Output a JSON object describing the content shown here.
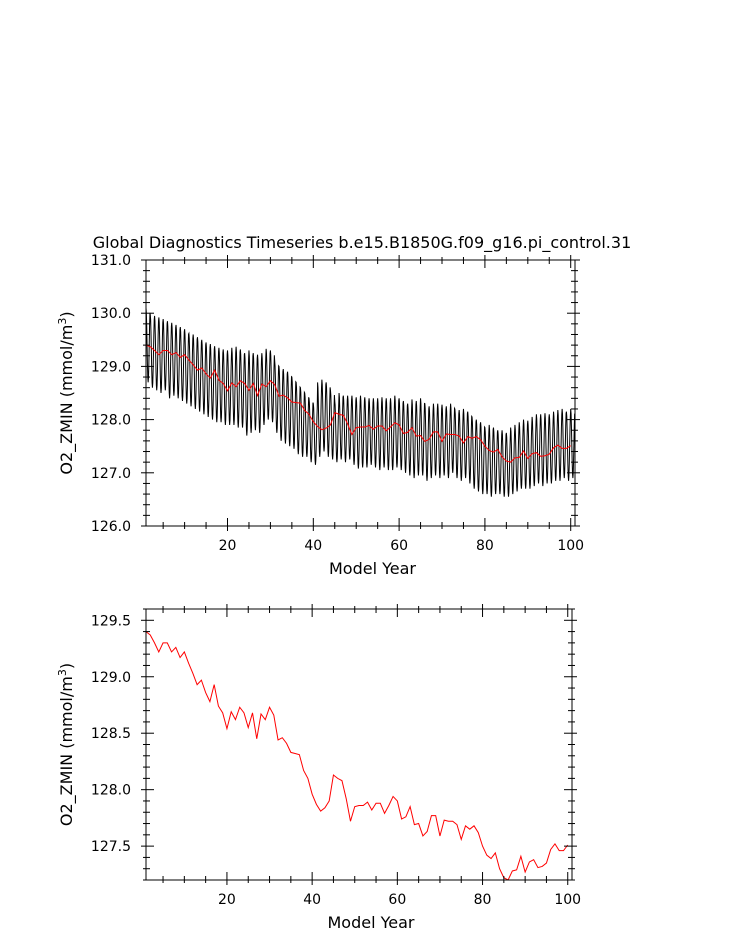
{
  "title": "Global Diagnostics Timeseries b.e15.B1850G.f09_g16.pi_control.31",
  "colors": {
    "monthly": "#000000",
    "annual": "#ff0000",
    "axis": "#000000"
  },
  "chart_data": [
    {
      "type": "line",
      "xlabel": "Model Year",
      "ylabel_main": "O2_ZMIN (mmol/m",
      "ylabel_sup": "3",
      "ylabel_close": ")",
      "xlim": [
        1,
        101
      ],
      "ylim": [
        126.0,
        131.0
      ],
      "xticks": [
        20,
        40,
        60,
        80,
        100
      ],
      "xtick_labels": [
        "20",
        "40",
        "60",
        "80",
        "100"
      ],
      "yticks": [
        126.0,
        127.0,
        128.0,
        129.0,
        130.0,
        131.0
      ],
      "ytick_labels": [
        "126.0",
        "127.0",
        "128.0",
        "129.0",
        "130.0",
        "131.0"
      ],
      "series": [
        {
          "kind": "seasonal-envelope",
          "color": "#000000",
          "x_start": 1,
          "upper": [
            130.1,
            129.97,
            129.95,
            129.92,
            129.89,
            129.85,
            129.82,
            129.78,
            129.74,
            129.7,
            129.62,
            129.6,
            129.55,
            129.5,
            129.45,
            129.42,
            129.38,
            129.35,
            129.32,
            129.3,
            129.35,
            129.37,
            129.32,
            129.25,
            129.3,
            129.25,
            129.22,
            129.25,
            129.33,
            129.3,
            129.1,
            129.0,
            128.95,
            128.9,
            128.8,
            128.7,
            128.6,
            128.5,
            128.4,
            128.3,
            128.7,
            128.75,
            128.7,
            128.55,
            128.35,
            128.5,
            128.45,
            128.45,
            128.45,
            128.42,
            128.45,
            128.42,
            128.4,
            128.4,
            128.4,
            128.42,
            128.4,
            128.4,
            128.45,
            128.4,
            128.35,
            128.3,
            128.38,
            128.35,
            128.4,
            128.3,
            128.25,
            128.3,
            128.3,
            128.28,
            128.25,
            128.3,
            128.2,
            128.18,
            128.2,
            128.15,
            128.05,
            128.0,
            127.95,
            127.85,
            127.9,
            127.85,
            127.8,
            127.8,
            127.75,
            127.85,
            127.9,
            127.95,
            128.0,
            127.98,
            128.05,
            128.1,
            128.1,
            128.12,
            128.1,
            128.15,
            128.18,
            128.2,
            128.15,
            128.2
          ],
          "lower": [
            128.7,
            128.6,
            128.55,
            128.5,
            128.55,
            128.4,
            128.45,
            128.4,
            128.35,
            128.3,
            128.25,
            128.2,
            128.15,
            128.1,
            128.05,
            128.0,
            127.95,
            127.95,
            127.9,
            127.9,
            127.9,
            127.85,
            127.85,
            127.7,
            127.75,
            127.8,
            127.75,
            127.9,
            128.0,
            127.95,
            127.75,
            127.6,
            127.55,
            127.5,
            127.45,
            127.35,
            127.3,
            127.3,
            127.2,
            127.15,
            127.3,
            127.4,
            127.3,
            127.25,
            127.2,
            127.25,
            127.2,
            127.25,
            127.15,
            127.08,
            127.1,
            127.1,
            127.15,
            127.1,
            127.05,
            127.1,
            127.05,
            127.05,
            127.1,
            127.05,
            127.0,
            126.95,
            126.9,
            126.95,
            126.95,
            126.85,
            126.9,
            126.95,
            126.9,
            126.95,
            126.9,
            127.0,
            126.9,
            126.85,
            126.9,
            126.8,
            126.7,
            126.65,
            126.6,
            126.6,
            126.55,
            126.6,
            126.6,
            126.55,
            126.55,
            126.6,
            126.65,
            126.7,
            126.7,
            126.7,
            126.75,
            126.8,
            126.75,
            126.8,
            126.8,
            126.85,
            126.85,
            126.9,
            126.85,
            126.9
          ]
        },
        {
          "kind": "annual-mean",
          "color": "#ff0000",
          "x_start": 1,
          "values": [
            129.4,
            129.37,
            129.3,
            129.22,
            129.3,
            129.3,
            129.22,
            129.26,
            129.17,
            129.22,
            129.12,
            129.03,
            128.93,
            128.97,
            128.86,
            128.78,
            128.93,
            128.74,
            128.68,
            128.54,
            128.69,
            128.62,
            128.73,
            128.68,
            128.55,
            128.68,
            128.45,
            128.67,
            128.62,
            128.73,
            128.66,
            128.44,
            128.46,
            128.41,
            128.33,
            128.32,
            128.31,
            128.17,
            128.1,
            127.96,
            127.87,
            127.81,
            127.84,
            127.9,
            128.13,
            128.1,
            128.08,
            127.92,
            127.72,
            127.85,
            127.86,
            127.86,
            127.89,
            127.82,
            127.88,
            127.88,
            127.79,
            127.86,
            127.94,
            127.9,
            127.74,
            127.76,
            127.85,
            127.69,
            127.7,
            127.59,
            127.63,
            127.77,
            127.77,
            127.59,
            127.73,
            127.72,
            127.72,
            127.69,
            127.56,
            127.68,
            127.65,
            127.68,
            127.62,
            127.5,
            127.42,
            127.39,
            127.44,
            127.3,
            127.22,
            127.2,
            127.28,
            127.29,
            127.41,
            127.27,
            127.36,
            127.38,
            127.31,
            127.32,
            127.35,
            127.47,
            127.52,
            127.46,
            127.46,
            127.51
          ]
        }
      ]
    },
    {
      "type": "line",
      "xlabel": "Model Year",
      "ylabel_main": "O2_ZMIN (mmol/m",
      "ylabel_sup": "3",
      "ylabel_close": ")",
      "xlim": [
        1,
        101
      ],
      "ylim": [
        127.2,
        129.6
      ],
      "xticks": [
        20,
        40,
        60,
        80,
        100
      ],
      "xtick_labels": [
        "20",
        "40",
        "60",
        "80",
        "100"
      ],
      "yticks": [
        127.5,
        128.0,
        128.5,
        129.0,
        129.5
      ],
      "ytick_labels": [
        "127.5",
        "128.0",
        "128.5",
        "129.0",
        "129.5"
      ],
      "series": [
        {
          "kind": "annual-mean",
          "color": "#ff0000",
          "x_start": 1,
          "values": [
            129.4,
            129.37,
            129.3,
            129.22,
            129.3,
            129.3,
            129.22,
            129.26,
            129.17,
            129.22,
            129.12,
            129.03,
            128.93,
            128.97,
            128.86,
            128.78,
            128.93,
            128.74,
            128.68,
            128.54,
            128.69,
            128.62,
            128.73,
            128.68,
            128.55,
            128.68,
            128.45,
            128.67,
            128.62,
            128.73,
            128.66,
            128.44,
            128.46,
            128.41,
            128.33,
            128.32,
            128.31,
            128.17,
            128.1,
            127.96,
            127.87,
            127.81,
            127.84,
            127.9,
            128.13,
            128.1,
            128.08,
            127.92,
            127.72,
            127.85,
            127.86,
            127.86,
            127.89,
            127.82,
            127.88,
            127.88,
            127.79,
            127.86,
            127.94,
            127.9,
            127.74,
            127.76,
            127.85,
            127.69,
            127.7,
            127.59,
            127.63,
            127.77,
            127.77,
            127.59,
            127.73,
            127.72,
            127.72,
            127.69,
            127.56,
            127.68,
            127.65,
            127.68,
            127.62,
            127.5,
            127.42,
            127.39,
            127.44,
            127.3,
            127.22,
            127.2,
            127.28,
            127.29,
            127.41,
            127.27,
            127.36,
            127.38,
            127.31,
            127.32,
            127.35,
            127.47,
            127.52,
            127.46,
            127.46,
            127.51
          ]
        }
      ]
    }
  ]
}
